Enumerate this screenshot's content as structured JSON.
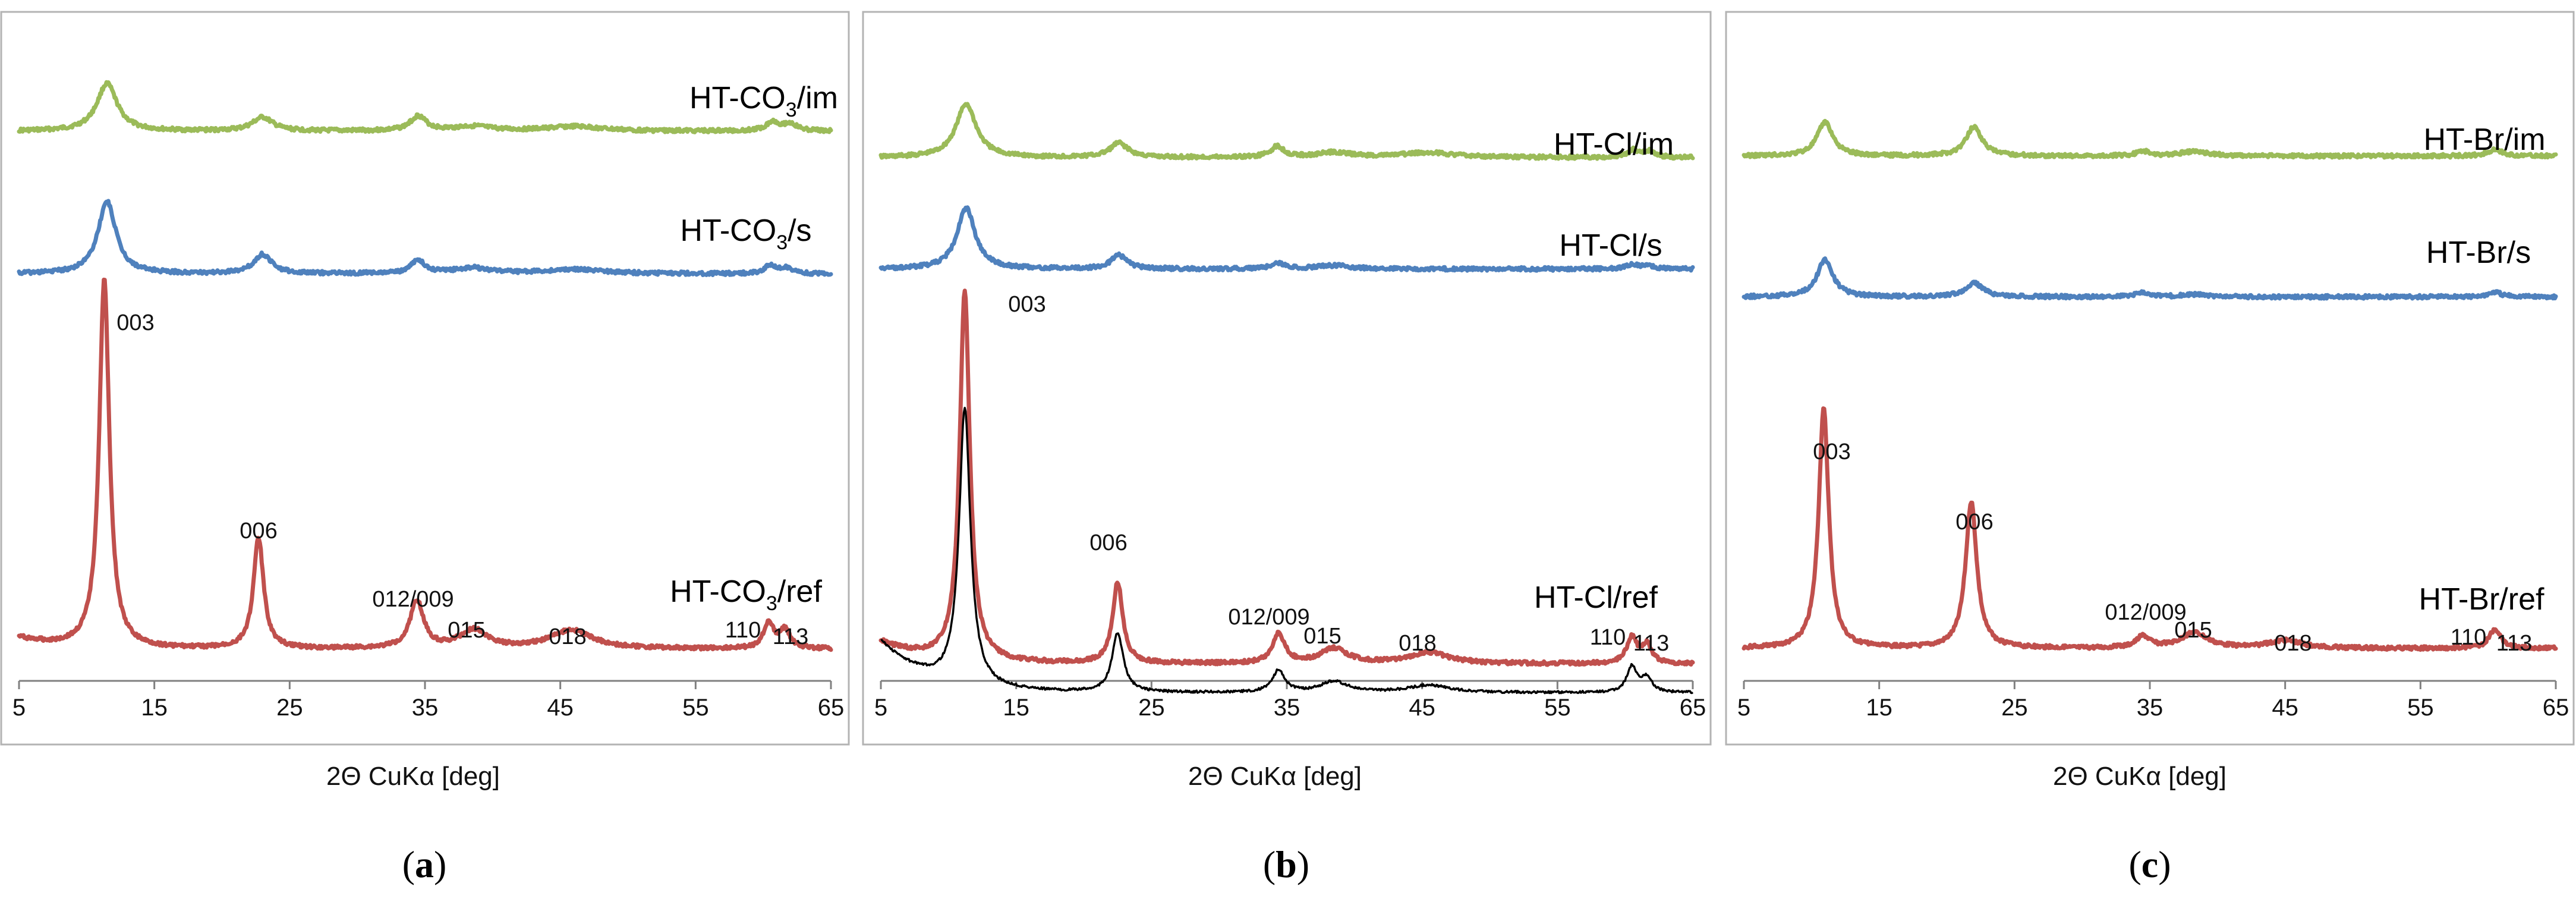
{
  "chart_data": [
    {
      "type": "line",
      "panel": "a",
      "panel_label": "a",
      "xlabel": "2Θ CuKα [deg]",
      "ylabel": "",
      "xlim": [
        5,
        65
      ],
      "xticks": [
        5,
        15,
        25,
        35,
        45,
        55,
        65
      ],
      "grid": false,
      "series": [
        {
          "name": "HT-CO3/im",
          "label_main": "HT-CO",
          "label_sub": "3",
          "label_rest": "/im",
          "color": "#9bbb59",
          "baseline": 0.05,
          "peaks": [
            {
              "x": 11.5,
              "h": 0.42,
              "w": 0.9
            },
            {
              "x": 23.0,
              "h": 0.12,
              "w": 0.9
            },
            {
              "x": 34.5,
              "h": 0.13,
              "w": 0.7
            },
            {
              "x": 38.5,
              "h": 0.04,
              "w": 1.6
            },
            {
              "x": 46.0,
              "h": 0.04,
              "w": 2.5
            },
            {
              "x": 60.7,
              "h": 0.08,
              "w": 0.6
            },
            {
              "x": 62.0,
              "h": 0.06,
              "w": 0.6
            }
          ]
        },
        {
          "name": "HT-CO3/s",
          "label_main": "HT-CO",
          "label_sub": "3",
          "label_rest": "/s",
          "color": "#4f81bd",
          "baseline": 0.05,
          "peaks": [
            {
              "x": 11.5,
              "h": 0.64,
              "w": 0.8
            },
            {
              "x": 23.0,
              "h": 0.17,
              "w": 0.8
            },
            {
              "x": 34.5,
              "h": 0.12,
              "w": 0.6
            },
            {
              "x": 38.5,
              "h": 0.05,
              "w": 1.6
            },
            {
              "x": 46.0,
              "h": 0.04,
              "w": 2.5
            },
            {
              "x": 60.5,
              "h": 0.07,
              "w": 0.5
            },
            {
              "x": 61.7,
              "h": 0.05,
              "w": 0.5
            }
          ]
        },
        {
          "name": "HT-CO3/ref",
          "label_main": "HT-CO",
          "label_sub": "3",
          "label_rest": "/ref",
          "color": "#c0504d",
          "baseline": 0.03,
          "peaks": [
            {
              "x": 11.3,
              "h": 1.0,
              "w": 0.45
            },
            {
              "x": 22.7,
              "h": 0.3,
              "w": 0.45
            },
            {
              "x": 34.4,
              "h": 0.13,
              "w": 0.6
            },
            {
              "x": 38.6,
              "h": 0.05,
              "w": 1.2
            },
            {
              "x": 45.8,
              "h": 0.05,
              "w": 1.9
            },
            {
              "x": 60.4,
              "h": 0.07,
              "w": 0.45
            },
            {
              "x": 61.6,
              "h": 0.05,
              "w": 0.45
            }
          ]
        }
      ],
      "annotations": [
        "003",
        "006",
        "012/009",
        "015",
        "018",
        "110",
        "113"
      ]
    },
    {
      "type": "line",
      "panel": "b",
      "panel_label": "b",
      "xlabel": "2Θ CuKα [deg]",
      "ylabel": "",
      "xlim": [
        5,
        65
      ],
      "xticks": [
        5,
        15,
        25,
        35,
        45,
        55,
        65
      ],
      "grid": false,
      "series": [
        {
          "name": "HT-Cl/im",
          "label_main": "HT-Cl/im",
          "color": "#9bbb59",
          "baseline": 0.05,
          "peaks": [
            {
              "x": 11.3,
              "h": 0.45,
              "w": 0.9
            },
            {
              "x": 22.6,
              "h": 0.12,
              "w": 0.8
            },
            {
              "x": 34.3,
              "h": 0.09,
              "w": 0.6
            },
            {
              "x": 38.5,
              "h": 0.04,
              "w": 1.5
            },
            {
              "x": 45.5,
              "h": 0.04,
              "w": 2.5
            },
            {
              "x": 60.6,
              "h": 0.06,
              "w": 0.5
            },
            {
              "x": 61.8,
              "h": 0.05,
              "w": 0.5
            }
          ]
        },
        {
          "name": "HT-Cl/s",
          "label_main": "HT-Cl/s",
          "color": "#4f81bd",
          "baseline": 0.04,
          "peaks": [
            {
              "x": 11.3,
              "h": 0.54,
              "w": 0.8
            },
            {
              "x": 22.6,
              "h": 0.12,
              "w": 0.7
            },
            {
              "x": 34.4,
              "h": 0.05,
              "w": 0.6
            },
            {
              "x": 38.5,
              "h": 0.03,
              "w": 1.5
            },
            {
              "x": 60.5,
              "h": 0.04,
              "w": 0.5
            },
            {
              "x": 61.7,
              "h": 0.03,
              "w": 0.5
            }
          ]
        },
        {
          "name": "HT-Cl/ref",
          "label_main": "HT-Cl/ref",
          "color": "#c0504d",
          "baseline": 0.03,
          "peaks": [
            {
              "x": 11.2,
              "h": 1.0,
              "w": 0.45
            },
            {
              "x": 22.5,
              "h": 0.22,
              "w": 0.45
            },
            {
              "x": 34.4,
              "h": 0.08,
              "w": 0.55
            },
            {
              "x": 38.5,
              "h": 0.04,
              "w": 1.2
            },
            {
              "x": 45.5,
              "h": 0.03,
              "w": 1.8
            },
            {
              "x": 60.5,
              "h": 0.07,
              "w": 0.45
            },
            {
              "x": 61.6,
              "h": 0.05,
              "w": 0.45
            }
          ]
        },
        {
          "name": "reference (black)",
          "color": "#000000",
          "baseline": 0.0,
          "peaks": [
            {
              "x": 11.2,
              "h": 0.75,
              "w": 0.5
            },
            {
              "x": 22.5,
              "h": 0.16,
              "w": 0.5
            },
            {
              "x": 34.4,
              "h": 0.06,
              "w": 0.55
            },
            {
              "x": 38.5,
              "h": 0.03,
              "w": 1.2
            },
            {
              "x": 45.5,
              "h": 0.02,
              "w": 1.8
            },
            {
              "x": 60.5,
              "h": 0.07,
              "w": 0.45
            },
            {
              "x": 61.6,
              "h": 0.04,
              "w": 0.45
            }
          ]
        }
      ],
      "annotations": [
        "003",
        "006",
        "012/009",
        "015",
        "018",
        "110",
        "113"
      ]
    },
    {
      "type": "line",
      "panel": "c",
      "panel_label": "c",
      "xlabel": "2Θ CuKα [deg]",
      "ylabel": "",
      "xlim": [
        5,
        65
      ],
      "xticks": [
        5,
        15,
        25,
        35,
        45,
        55,
        65
      ],
      "grid": false,
      "series": [
        {
          "name": "HT-Br/im",
          "label_main": "HT-Br/im",
          "color": "#9bbb59",
          "baseline": 0.04,
          "peaks": [
            {
              "x": 11.0,
              "h": 0.3,
              "w": 0.7
            },
            {
              "x": 22.0,
              "h": 0.26,
              "w": 0.7
            },
            {
              "x": 34.5,
              "h": 0.04,
              "w": 0.6
            },
            {
              "x": 38.3,
              "h": 0.04,
              "w": 1.2
            },
            {
              "x": 60.5,
              "h": 0.06,
              "w": 0.6
            }
          ]
        },
        {
          "name": "HT-Br/s",
          "label_main": "HT-Br/s",
          "color": "#4f81bd",
          "baseline": 0.03,
          "peaks": [
            {
              "x": 11.0,
              "h": 0.33,
              "w": 0.7
            },
            {
              "x": 22.0,
              "h": 0.12,
              "w": 0.8
            },
            {
              "x": 34.5,
              "h": 0.04,
              "w": 0.6
            },
            {
              "x": 38.3,
              "h": 0.02,
              "w": 1.2
            },
            {
              "x": 60.5,
              "h": 0.04,
              "w": 0.6
            }
          ]
        },
        {
          "name": "HT-Br/ref",
          "label_main": "HT-Br/ref",
          "color": "#c0504d",
          "baseline": 0.03,
          "peaks": [
            {
              "x": 10.9,
              "h": 0.62,
              "w": 0.45
            },
            {
              "x": 21.8,
              "h": 0.38,
              "w": 0.5
            },
            {
              "x": 34.5,
              "h": 0.03,
              "w": 0.6
            },
            {
              "x": 38.3,
              "h": 0.04,
              "w": 1.2
            },
            {
              "x": 45.0,
              "h": 0.02,
              "w": 1.5
            },
            {
              "x": 60.5,
              "h": 0.05,
              "w": 0.5
            }
          ]
        }
      ],
      "annotations": [
        "003",
        "006",
        "012/009",
        "015",
        "018",
        "110",
        "113"
      ]
    }
  ]
}
